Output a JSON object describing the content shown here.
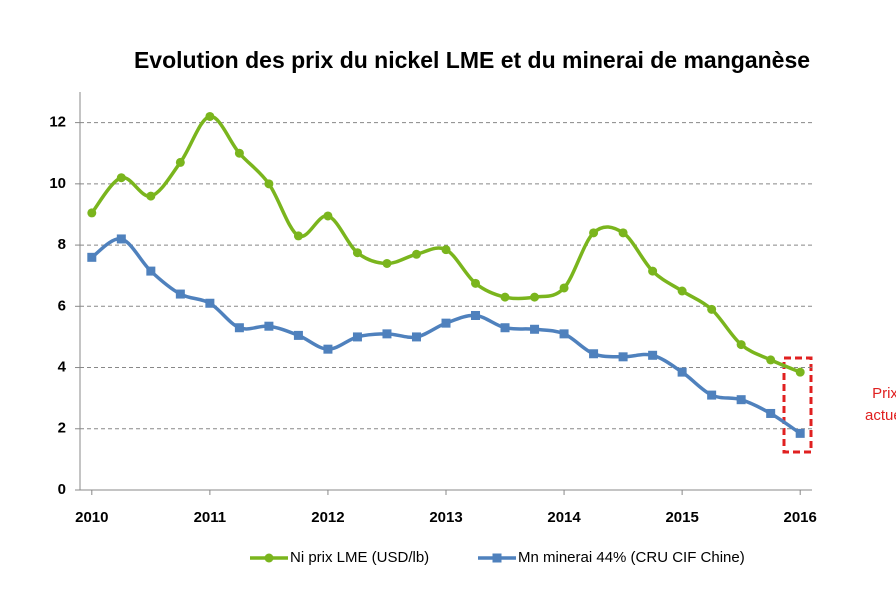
{
  "chart_data": {
    "type": "line",
    "title": "Evolution des prix du nickel LME et du minerai de manganèse",
    "x": [
      2010,
      2010.25,
      2010.5,
      2010.75,
      2011,
      2011.25,
      2011.5,
      2011.75,
      2012,
      2012.25,
      2012.5,
      2012.75,
      2013,
      2013.25,
      2013.5,
      2013.75,
      2014,
      2014.25,
      2014.5,
      2014.75,
      2015,
      2015.25,
      2015.5,
      2015.75,
      2016
    ],
    "series": [
      {
        "name": "Ni prix LME (USD/lb)",
        "color": "#7ab51d",
        "marker": "circle",
        "values": [
          9.05,
          10.2,
          9.6,
          10.7,
          12.2,
          11.0,
          10.0,
          8.3,
          8.95,
          7.75,
          7.4,
          7.7,
          7.85,
          6.75,
          6.3,
          6.3,
          6.6,
          8.4,
          8.4,
          7.15,
          6.5,
          5.9,
          4.75,
          4.25,
          3.85
        ]
      },
      {
        "name": "Mn minerai 44% (CRU CIF Chine)",
        "color": "#4f81bd",
        "marker": "square",
        "values": [
          7.6,
          8.2,
          7.15,
          6.4,
          6.1,
          5.3,
          5.35,
          5.05,
          4.6,
          5.0,
          5.1,
          5.0,
          5.45,
          5.7,
          5.3,
          5.25,
          5.1,
          4.45,
          4.35,
          4.4,
          3.85,
          3.1,
          2.95,
          2.5,
          1.85
        ]
      }
    ],
    "xlim": [
      2009.9,
      2016.1
    ],
    "xticks": [
      2010,
      2011,
      2012,
      2013,
      2014,
      2015,
      2016
    ],
    "ylim": [
      0,
      13
    ],
    "yticks": [
      0,
      2,
      4,
      6,
      8,
      10,
      12
    ],
    "grid": true,
    "legend": "bottom",
    "annotation": [
      "Prix",
      "actuel"
    ]
  }
}
